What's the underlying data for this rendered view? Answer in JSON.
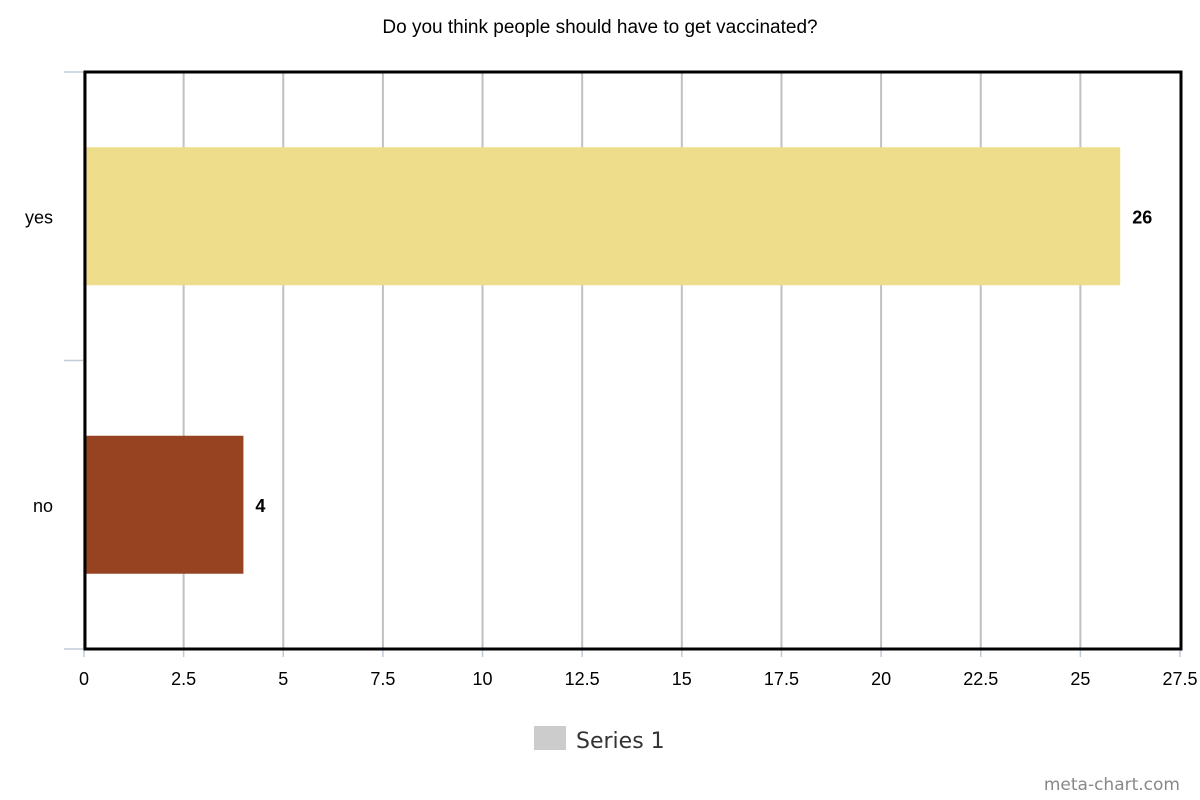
{
  "chart_data": {
    "type": "bar",
    "orientation": "horizontal",
    "title": "Do you think people should have to get vaccinated?",
    "xlabel": "",
    "ylabel": "",
    "categories": [
      "yes",
      "no"
    ],
    "series": [
      {
        "name": "Series 1",
        "values": [
          26,
          4
        ],
        "colors": [
          "#eedd8a",
          "#974322"
        ]
      }
    ],
    "xlim": [
      0,
      27.5
    ],
    "ticks": [
      0,
      2.5,
      5,
      7.5,
      10,
      12.5,
      15,
      17.5,
      20,
      22.5,
      25,
      27.5
    ],
    "tick_labels": [
      "0",
      "2.5",
      "5",
      "7.5",
      "10",
      "12.5",
      "15",
      "17.5",
      "20",
      "22.5",
      "25",
      "27.5"
    ],
    "value_labels": [
      "26",
      "4"
    ],
    "grid": "vertical",
    "legend": {
      "placement": "bottom-center",
      "entry": "Series 1",
      "swatch_color": "#cccccc"
    },
    "credit": "meta-chart.com"
  }
}
